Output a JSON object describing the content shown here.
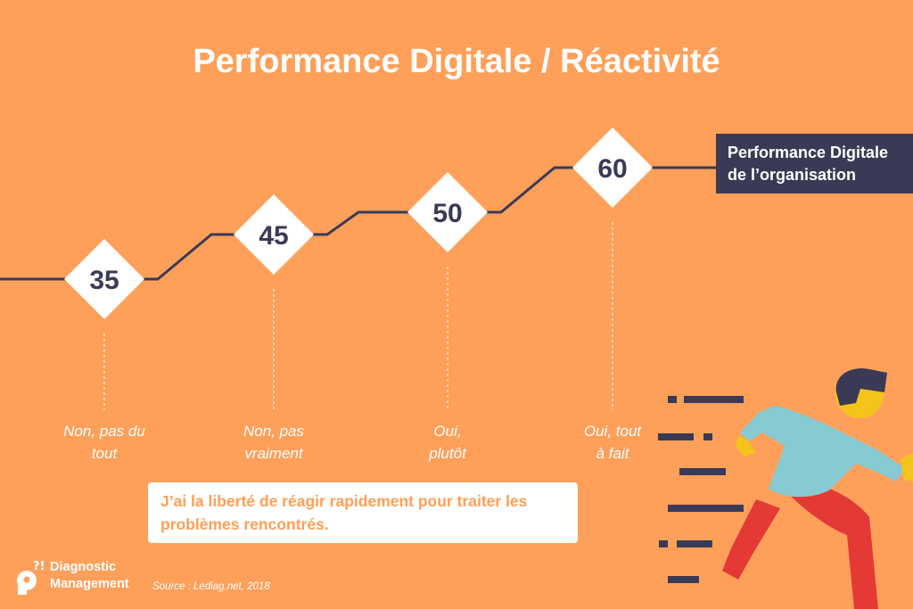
{
  "chart_data": {
    "type": "line",
    "title": "Performance Digitale / Réactivité",
    "categories": [
      "Non, pas du tout",
      "Non, pas vraiment",
      "Oui, plutôt",
      "Oui, tout à fait"
    ],
    "category_lines": [
      [
        "Non, pas du",
        "tout"
      ],
      [
        "Non, pas",
        "vraiment"
      ],
      [
        "Oui,",
        "plutôt"
      ],
      [
        "Oui, tout",
        "à fait"
      ]
    ],
    "values": [
      35,
      45,
      50,
      60
    ],
    "series": [
      {
        "name_lines": [
          "Performance Digitale",
          "de l’organisation"
        ],
        "values": [
          35,
          45,
          50,
          60
        ]
      }
    ],
    "colors": {
      "background": "#FFA05A",
      "line": "#3A3A56",
      "marker": "#ffffff",
      "value_text": "#3A3A56"
    }
  },
  "question_lines": [
    "J’ai la liberté de réagir rapidement pour traiter les",
    "problèmes rencontrés."
  ],
  "brand": {
    "line1": "Diagnostic",
    "line2": "Management"
  },
  "source": "Source : Lediag.net, 2018",
  "illustration": "running-man-icon"
}
